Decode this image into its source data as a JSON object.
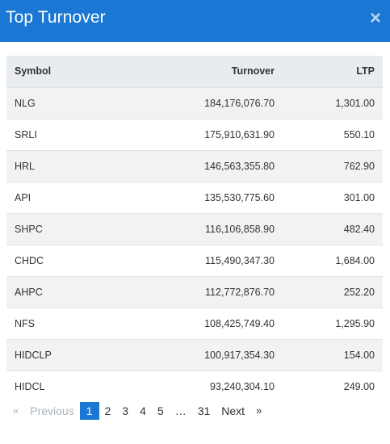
{
  "modal": {
    "title": "Top Turnover",
    "close_label": "×"
  },
  "table": {
    "headers": {
      "symbol": "Symbol",
      "turnover": "Turnover",
      "ltp": "LTP"
    },
    "rows": [
      {
        "symbol": "NLG",
        "turnover": "184,176,076.70",
        "ltp": "1,301.00"
      },
      {
        "symbol": "SRLI",
        "turnover": "175,910,631.90",
        "ltp": "550.10"
      },
      {
        "symbol": "HRL",
        "turnover": "146,563,355.80",
        "ltp": "762.90"
      },
      {
        "symbol": "API",
        "turnover": "135,530,775.60",
        "ltp": "301.00"
      },
      {
        "symbol": "SHPC",
        "turnover": "116,106,858.90",
        "ltp": "482.40"
      },
      {
        "symbol": "CHDC",
        "turnover": "115,490,347.30",
        "ltp": "1,684.00"
      },
      {
        "symbol": "AHPC",
        "turnover": "112,772,876.70",
        "ltp": "252.20"
      },
      {
        "symbol": "NFS",
        "turnover": "108,425,749.40",
        "ltp": "1,295.90"
      },
      {
        "symbol": "HIDCLP",
        "turnover": "100,917,354.30",
        "ltp": "154.00"
      },
      {
        "symbol": "HIDCL",
        "turnover": "93,240,304.10",
        "ltp": "249.00"
      }
    ]
  },
  "pagination": {
    "prev_arrow": "«",
    "prev_label": "Previous",
    "pages": [
      "1",
      "2",
      "3",
      "4",
      "5"
    ],
    "ellipsis": "…",
    "last_page": "31",
    "next_label": "Next",
    "next_arrow": "»",
    "active_page": "1",
    "accent_color": "#1a78d4"
  }
}
